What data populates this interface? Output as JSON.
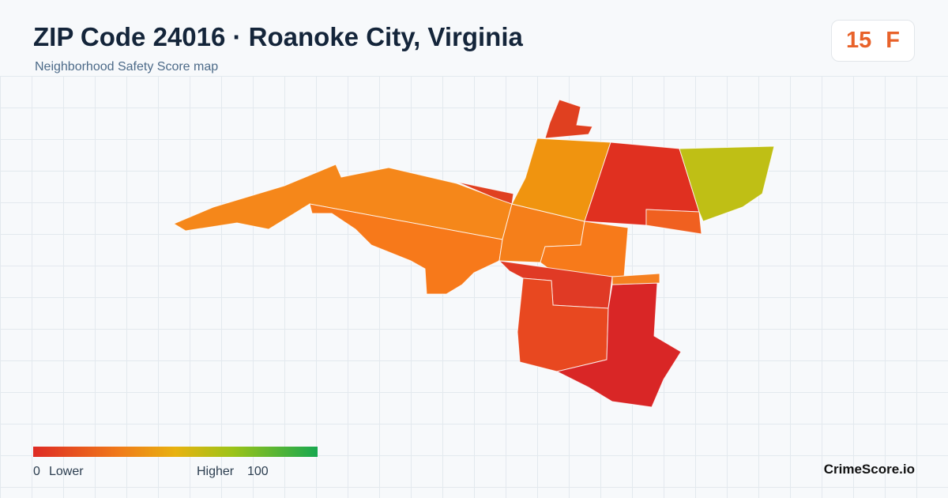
{
  "header": {
    "title": "ZIP Code 24016 · Roanoke City, Virginia",
    "subtitle": "Neighborhood Safety Score map"
  },
  "score": {
    "value": 15,
    "grade": "F"
  },
  "legend": {
    "min": 0,
    "min_label": "Lower",
    "max_label": "Higher",
    "max": 100
  },
  "brand": "CrimeScore.io"
}
